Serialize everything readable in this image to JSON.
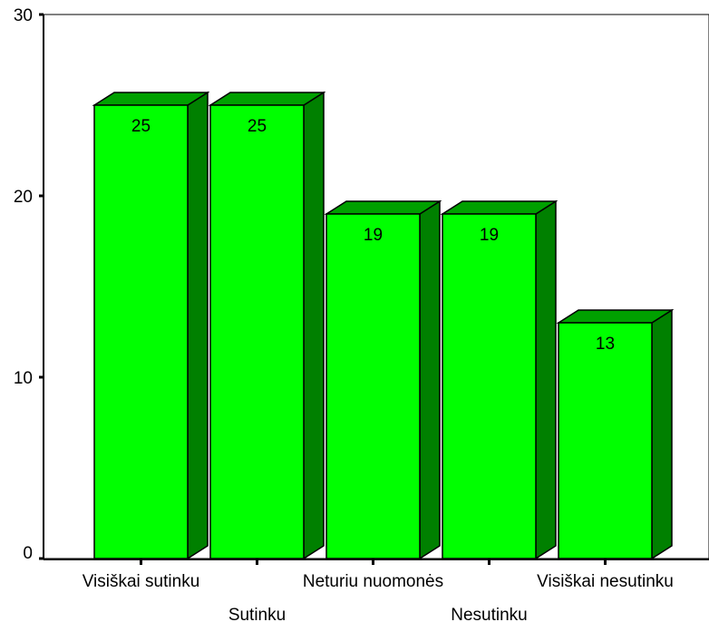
{
  "chart_data": {
    "type": "bar",
    "style": "3d",
    "categories": [
      "Visiškai sutinku",
      "Sutinku",
      "Neturiu nuomonės",
      "Nesutinku",
      "Visiškai nesutinku"
    ],
    "values": [
      25,
      25,
      19,
      19,
      13
    ],
    "data_labels": [
      "25",
      "25",
      "19",
      "19",
      "13"
    ],
    "title": "",
    "xlabel": "",
    "ylabel": "",
    "ylim": [
      0,
      30
    ],
    "yticks": [
      0,
      10,
      20,
      30
    ],
    "ytick_labels": [
      "0",
      "10",
      "20",
      "30"
    ],
    "grid": false,
    "legend": "none",
    "colors": {
      "bar_face": "#00ff00",
      "bar_side": "#008000",
      "bar_top": "#00a000",
      "outline": "#000000"
    }
  }
}
